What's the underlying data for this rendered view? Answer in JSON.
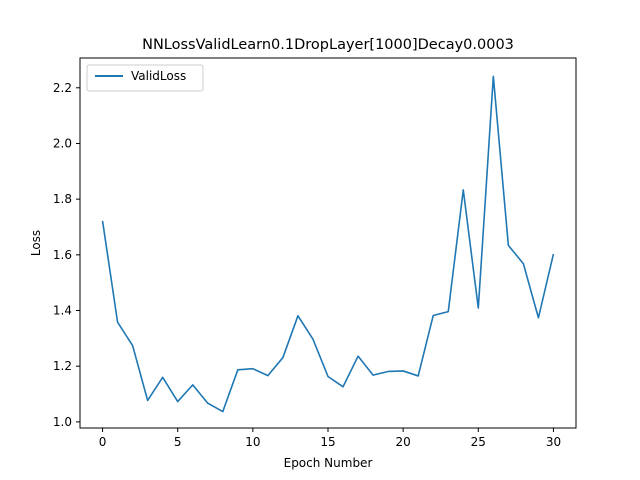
{
  "chart_data": {
    "type": "line",
    "title": "NNLossValidLearn0.1DropLayer[1000]Decay0.0003",
    "xlabel": "Epoch Number",
    "ylabel": "Loss",
    "xlim": [
      -1.5,
      31.5
    ],
    "ylim": [
      0.978,
      2.307
    ],
    "xticks": [
      0,
      5,
      10,
      15,
      20,
      25,
      30
    ],
    "xtick_labels": [
      "0",
      "5",
      "10",
      "15",
      "20",
      "25",
      "30"
    ],
    "yticks": [
      1.0,
      1.2,
      1.4,
      1.6,
      1.8,
      2.0,
      2.2
    ],
    "ytick_labels": [
      "1.0",
      "1.2",
      "1.4",
      "1.6",
      "1.8",
      "2.0",
      "2.2"
    ],
    "grid": false,
    "legend": "top-left",
    "colors": {
      "line": "#1f77b4",
      "axes": "#000000",
      "background": "#ffffff"
    },
    "series": [
      {
        "name": "ValidLoss",
        "x": [
          0,
          1,
          2,
          3,
          4,
          5,
          6,
          7,
          8,
          9,
          10,
          11,
          12,
          13,
          14,
          15,
          16,
          17,
          18,
          19,
          20,
          21,
          22,
          23,
          24,
          25,
          26,
          27,
          28,
          29,
          30
        ],
        "y": [
          1.722,
          1.358,
          1.274,
          1.077,
          1.16,
          1.073,
          1.133,
          1.067,
          1.037,
          1.187,
          1.191,
          1.166,
          1.231,
          1.381,
          1.297,
          1.163,
          1.126,
          1.236,
          1.168,
          1.181,
          1.183,
          1.165,
          1.382,
          1.396,
          1.833,
          1.409,
          2.241,
          1.634,
          1.568,
          1.374,
          1.603
        ]
      }
    ]
  }
}
